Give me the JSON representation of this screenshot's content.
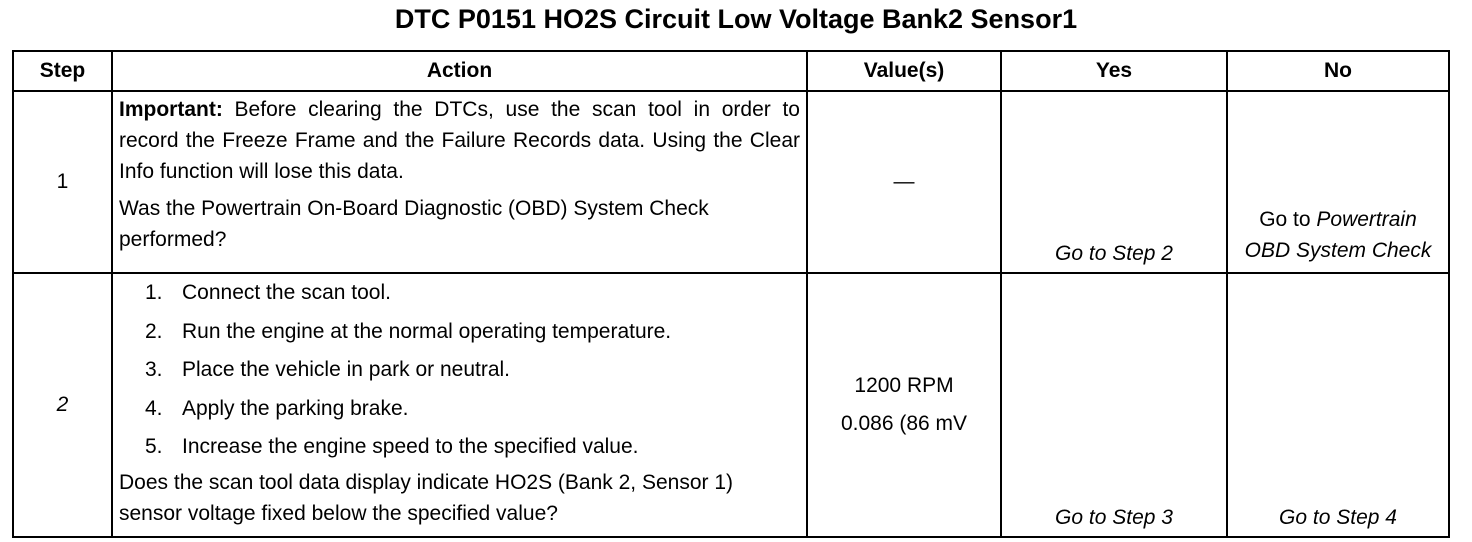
{
  "title": "DTC P0151 HO2S Circuit Low Voltage Bank2 Sensor1",
  "table": {
    "headers": [
      "Step",
      "Action",
      "Value(s)",
      "Yes",
      "No"
    ],
    "rows": [
      {
        "step": "1",
        "action": {
          "important_label": "Important:",
          "important_text": "Before clearing the DTCs, use the scan tool in order to record the Freeze Frame and the Failure Records data. Using the Clear Info function will lose this data.",
          "question": "Was the Powertrain On-Board Diagnostic (OBD) System Check performed?"
        },
        "values": [
          "—"
        ],
        "yes": "Go to Step 2",
        "no": {
          "prefix": "Go to",
          "link": "Powertrain OBD System Check"
        }
      },
      {
        "step": "2",
        "action": {
          "steps": [
            {
              "number": "1.",
              "text": "Connect the scan tool."
            },
            {
              "number": "2.",
              "text": "Run the engine at the normal operating temperature."
            },
            {
              "number": "3.",
              "text": "Place the vehicle in park or neutral."
            },
            {
              "number": "4.",
              "text": "Apply the parking brake."
            },
            {
              "number": "5.",
              "text": "Increase the engine speed to the specified value."
            }
          ],
          "question": "Does the scan tool data display indicate HO2S (Bank 2, Sensor 1) sensor voltage fixed below the specified value?"
        },
        "values": [
          "1200 RPM",
          "0.086 (86 mV"
        ],
        "yes": "Go to Step 3",
        "no": "Go to Step 4"
      }
    ]
  }
}
